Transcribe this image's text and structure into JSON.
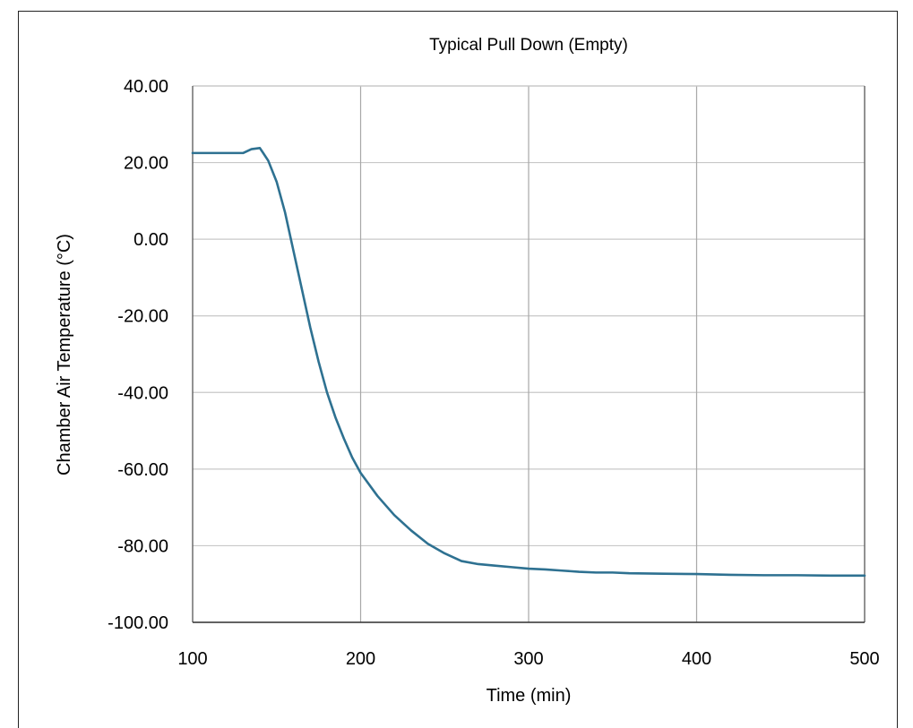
{
  "chart_data": {
    "type": "line",
    "title": "Typical Pull Down (Empty)",
    "xlabel": "Time (min)",
    "ylabel": "Chamber Air Temperature (°C)",
    "xlim": [
      100,
      500
    ],
    "ylim": [
      -100,
      40
    ],
    "x_ticks": [
      "100",
      "200",
      "300",
      "400",
      "500"
    ],
    "y_ticks": [
      "40.00",
      "20.00",
      "0.00",
      "-20.00",
      "-40.00",
      "-60.00",
      "-80.00",
      "-100.00"
    ],
    "grid": true,
    "legend": "none",
    "series": [
      {
        "color": "#2e7191",
        "x": [
          100,
          110,
          120,
          130,
          135,
          140,
          142,
          145,
          150,
          155,
          160,
          165,
          170,
          175,
          180,
          185,
          190,
          195,
          200,
          210,
          220,
          230,
          240,
          250,
          260,
          270,
          280,
          290,
          300,
          310,
          320,
          330,
          340,
          350,
          360,
          380,
          400,
          420,
          440,
          460,
          480,
          500
        ],
        "y": [
          22.5,
          22.5,
          22.5,
          22.5,
          23.5,
          23.8,
          22.5,
          20.5,
          15,
          7,
          -3,
          -13,
          -23,
          -32,
          -40,
          -46.5,
          -52,
          -57,
          -61,
          -67,
          -72,
          -76,
          -79.5,
          -82,
          -84,
          -84.8,
          -85.2,
          -85.6,
          -86,
          -86.2,
          -86.5,
          -86.8,
          -87,
          -87,
          -87.2,
          -87.3,
          -87.4,
          -87.6,
          -87.7,
          -87.7,
          -87.8,
          -87.8
        ]
      }
    ]
  }
}
